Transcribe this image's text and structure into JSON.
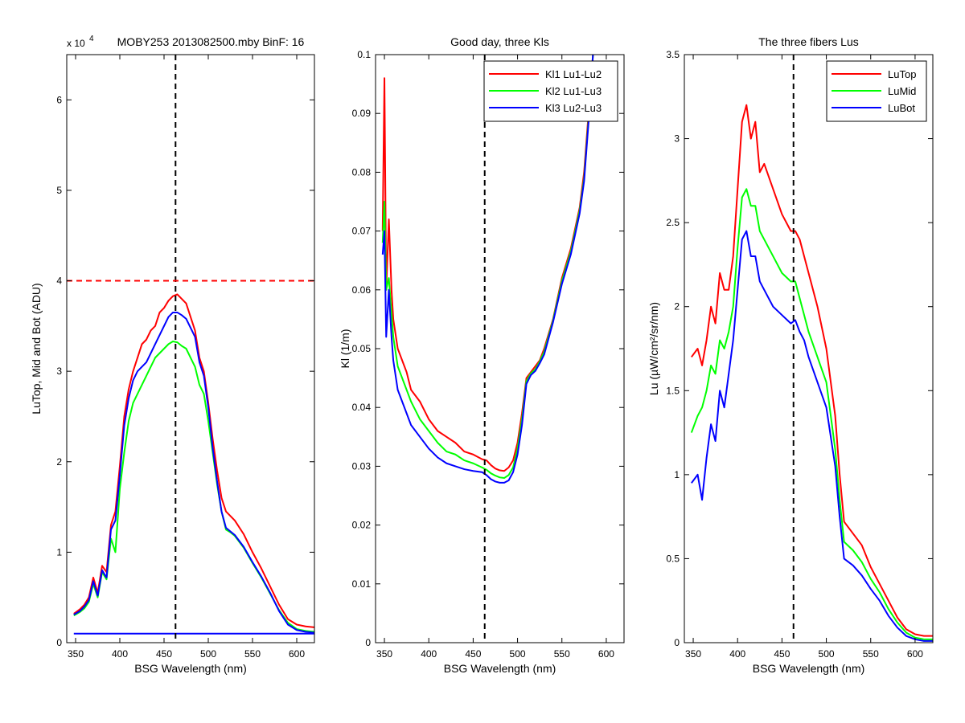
{
  "figure": {
    "background": "#ffffff"
  },
  "chart_data": [
    {
      "type": "line",
      "title": "MOBY253  2013082500.mby BinF: 16",
      "xlabel": "BSG Wavelength (nm)",
      "ylabel": "LuTop, Mid and Bot (ADU)",
      "exponent_label": "x 10",
      "exponent_power": "4",
      "xlim": [
        340,
        620
      ],
      "ylim": [
        0,
        65000
      ],
      "xticks": [
        350,
        400,
        450,
        500,
        550,
        600
      ],
      "xtick_labels": [
        "350",
        "400",
        "450",
        "500",
        "550",
        "600"
      ],
      "yticks": [
        0,
        10000,
        20000,
        30000,
        40000,
        50000,
        60000
      ],
      "ytick_labels": [
        "0",
        "1",
        "2",
        "3",
        "4",
        "5",
        "6"
      ],
      "legend": null,
      "reference_lines": [
        {
          "orientation": "vertical",
          "value": 463,
          "color": "#000000",
          "style": "dashed"
        },
        {
          "orientation": "horizontal",
          "value": 40000,
          "color": "#ff0000",
          "style": "dashed"
        }
      ],
      "series": [
        {
          "color": "#ff0000",
          "x": [
            348,
            355,
            360,
            365,
            370,
            375,
            380,
            385,
            390,
            395,
            400,
            405,
            410,
            415,
            420,
            425,
            430,
            435,
            440,
            445,
            450,
            455,
            460,
            465,
            470,
            475,
            480,
            485,
            490,
            495,
            500,
            505,
            510,
            515,
            520,
            525,
            530,
            540,
            550,
            560,
            570,
            580,
            590,
            600,
            610,
            620
          ],
          "y": [
            3200,
            3700,
            4200,
            5000,
            7200,
            5500,
            8500,
            7800,
            13000,
            14500,
            19500,
            25000,
            28000,
            30000,
            31500,
            33000,
            33500,
            34500,
            35000,
            36500,
            37000,
            37800,
            38300,
            38500,
            38000,
            37500,
            36000,
            34500,
            31500,
            30000,
            26500,
            22500,
            19000,
            16000,
            14500,
            14000,
            13500,
            12000,
            10000,
            8200,
            6200,
            4200,
            2600,
            2000,
            1800,
            1700
          ]
        },
        {
          "color": "#00ff00",
          "x": [
            348,
            355,
            360,
            365,
            370,
            375,
            380,
            385,
            390,
            395,
            400,
            405,
            410,
            415,
            420,
            425,
            430,
            435,
            440,
            445,
            450,
            455,
            460,
            465,
            470,
            475,
            480,
            485,
            490,
            495,
            500,
            505,
            510,
            515,
            520,
            525,
            530,
            540,
            550,
            560,
            570,
            580,
            590,
            600,
            610,
            620
          ],
          "y": [
            3000,
            3400,
            3800,
            4500,
            6500,
            5000,
            7800,
            7000,
            11500,
            10000,
            17000,
            21000,
            24500,
            26500,
            27500,
            28500,
            29500,
            30500,
            31500,
            32000,
            32500,
            33000,
            33300,
            33200,
            32800,
            32500,
            31500,
            30500,
            28500,
            27500,
            24500,
            21000,
            17500,
            14500,
            12500,
            12200,
            11800,
            10500,
            8800,
            7200,
            5400,
            3600,
            2200,
            1500,
            1300,
            1200
          ]
        },
        {
          "color": "#0000ff",
          "x": [
            348,
            355,
            360,
            365,
            370,
            375,
            380,
            385,
            390,
            395,
            400,
            405,
            410,
            415,
            420,
            425,
            430,
            435,
            440,
            445,
            450,
            455,
            460,
            465,
            470,
            475,
            480,
            485,
            490,
            495,
            500,
            505,
            510,
            515,
            520,
            525,
            530,
            540,
            550,
            560,
            570,
            580,
            590,
            600,
            610,
            620
          ],
          "y": [
            3100,
            3500,
            4000,
            4700,
            6800,
            5200,
            8000,
            7200,
            12500,
            13500,
            18500,
            24000,
            27000,
            29000,
            30000,
            30500,
            31000,
            32000,
            33000,
            34000,
            35000,
            36000,
            36500,
            36500,
            36200,
            35800,
            34800,
            33800,
            31000,
            29500,
            26000,
            21500,
            17800,
            14500,
            12700,
            12300,
            11900,
            10600,
            8900,
            7300,
            5500,
            3500,
            2000,
            1400,
            1200,
            1100
          ]
        },
        {
          "color": "#0000ff",
          "x": [
            348,
            620
          ],
          "y": [
            1000,
            1000
          ]
        }
      ]
    },
    {
      "type": "line",
      "title": "Good day, three Kls",
      "xlabel": "BSG Wavelength (nm)",
      "ylabel": "Kl (1/m)",
      "xlim": [
        340,
        620
      ],
      "ylim": [
        0,
        0.1
      ],
      "xticks": [
        350,
        400,
        450,
        500,
        550,
        600
      ],
      "xtick_labels": [
        "350",
        "400",
        "450",
        "500",
        "550",
        "600"
      ],
      "yticks": [
        0,
        0.01,
        0.02,
        0.03,
        0.04,
        0.05,
        0.06,
        0.07,
        0.08,
        0.09,
        0.1
      ],
      "ytick_labels": [
        "0",
        "0.01",
        "0.02",
        "0.03",
        "0.04",
        "0.05",
        "0.06",
        "0.07",
        "0.08",
        "0.09",
        "0.1"
      ],
      "legend": "top-right",
      "reference_lines": [
        {
          "orientation": "vertical",
          "value": 463,
          "color": "#000000",
          "style": "dashed"
        }
      ],
      "series": [
        {
          "name": "Kl1 Lu1-Lu2",
          "color": "#ff0000",
          "x": [
            348,
            350,
            352,
            355,
            358,
            360,
            365,
            370,
            375,
            380,
            390,
            400,
            410,
            420,
            430,
            440,
            450,
            460,
            465,
            470,
            475,
            480,
            485,
            490,
            495,
            500,
            505,
            510,
            515,
            520,
            525,
            530,
            540,
            550,
            560,
            570,
            575,
            580,
            585
          ],
          "y": [
            0.07,
            0.096,
            0.06,
            0.072,
            0.06,
            0.055,
            0.05,
            0.048,
            0.046,
            0.043,
            0.041,
            0.038,
            0.036,
            0.035,
            0.034,
            0.0325,
            0.032,
            0.0312,
            0.031,
            0.0302,
            0.0296,
            0.0293,
            0.0292,
            0.0298,
            0.031,
            0.034,
            0.039,
            0.045,
            0.046,
            0.047,
            0.048,
            0.05,
            0.055,
            0.062,
            0.067,
            0.074,
            0.08,
            0.09,
            0.1
          ]
        },
        {
          "name": "Kl2 Lu1-Lu3",
          "color": "#00ff00",
          "x": [
            348,
            350,
            352,
            355,
            358,
            360,
            365,
            370,
            375,
            380,
            390,
            400,
            410,
            420,
            430,
            440,
            450,
            460,
            465,
            470,
            475,
            480,
            485,
            490,
            495,
            500,
            505,
            510,
            515,
            520,
            525,
            530,
            540,
            550,
            560,
            570,
            575,
            580,
            585
          ],
          "y": [
            0.068,
            0.075,
            0.06,
            0.062,
            0.056,
            0.052,
            0.047,
            0.045,
            0.043,
            0.041,
            0.038,
            0.036,
            0.034,
            0.0325,
            0.032,
            0.031,
            0.0305,
            0.0298,
            0.0294,
            0.0288,
            0.0284,
            0.0281,
            0.028,
            0.0285,
            0.0298,
            0.033,
            0.038,
            0.0445,
            0.0458,
            0.0465,
            0.0478,
            0.0495,
            0.0548,
            0.0615,
            0.0665,
            0.0735,
            0.079,
            0.089,
            0.1
          ]
        },
        {
          "name": "Kl3 Lu2-Lu3",
          "color": "#0000ff",
          "x": [
            348,
            350,
            352,
            355,
            358,
            360,
            365,
            370,
            375,
            380,
            390,
            400,
            410,
            420,
            430,
            440,
            450,
            460,
            465,
            470,
            475,
            480,
            485,
            490,
            495,
            500,
            505,
            510,
            515,
            520,
            525,
            530,
            540,
            550,
            560,
            570,
            575,
            580,
            585
          ],
          "y": [
            0.066,
            0.07,
            0.052,
            0.06,
            0.052,
            0.048,
            0.043,
            0.041,
            0.039,
            0.037,
            0.035,
            0.033,
            0.0315,
            0.0305,
            0.03,
            0.0295,
            0.0292,
            0.029,
            0.0285,
            0.0278,
            0.0274,
            0.0272,
            0.0272,
            0.0276,
            0.029,
            0.032,
            0.037,
            0.044,
            0.0455,
            0.0462,
            0.0475,
            0.049,
            0.0545,
            0.061,
            0.066,
            0.073,
            0.0785,
            0.0885,
            0.1
          ]
        }
      ]
    },
    {
      "type": "line",
      "title": "The three fibers Lus",
      "xlabel": "BSG Wavelength (nm)",
      "ylabel": "Lu (µW/cm²/sr/nm)",
      "xlim": [
        340,
        620
      ],
      "ylim": [
        0,
        3.5
      ],
      "xticks": [
        350,
        400,
        450,
        500,
        550,
        600
      ],
      "xtick_labels": [
        "350",
        "400",
        "450",
        "500",
        "550",
        "600"
      ],
      "yticks": [
        0,
        0.5,
        1,
        1.5,
        2,
        2.5,
        3,
        3.5
      ],
      "ytick_labels": [
        "0",
        "0.5",
        "1",
        "1.5",
        "2",
        "2.5",
        "3",
        "3.5"
      ],
      "legend": "top-right",
      "reference_lines": [
        {
          "orientation": "vertical",
          "value": 463,
          "color": "#000000",
          "style": "dashed"
        }
      ],
      "series": [
        {
          "name": "LuTop",
          "color": "#ff0000",
          "x": [
            348,
            355,
            360,
            365,
            370,
            375,
            380,
            385,
            390,
            395,
            400,
            405,
            410,
            415,
            420,
            425,
            430,
            440,
            450,
            460,
            465,
            470,
            475,
            480,
            490,
            500,
            510,
            515,
            520,
            530,
            540,
            550,
            560,
            570,
            580,
            590,
            600,
            610,
            620
          ],
          "y": [
            1.7,
            1.75,
            1.65,
            1.8,
            2.0,
            1.9,
            2.2,
            2.1,
            2.1,
            2.3,
            2.7,
            3.1,
            3.2,
            3.0,
            3.1,
            2.8,
            2.85,
            2.7,
            2.55,
            2.45,
            2.45,
            2.4,
            2.3,
            2.2,
            2.0,
            1.75,
            1.35,
            1.0,
            0.72,
            0.65,
            0.58,
            0.45,
            0.35,
            0.25,
            0.15,
            0.08,
            0.05,
            0.04,
            0.04
          ]
        },
        {
          "name": "LuMid",
          "color": "#00ff00",
          "x": [
            348,
            355,
            360,
            365,
            370,
            375,
            380,
            385,
            390,
            395,
            400,
            405,
            410,
            415,
            420,
            425,
            430,
            440,
            450,
            460,
            465,
            470,
            475,
            480,
            490,
            500,
            510,
            515,
            520,
            530,
            540,
            550,
            560,
            570,
            580,
            590,
            600,
            610,
            620
          ],
          "y": [
            1.25,
            1.35,
            1.4,
            1.5,
            1.65,
            1.6,
            1.8,
            1.75,
            1.85,
            2.0,
            2.35,
            2.65,
            2.7,
            2.6,
            2.6,
            2.45,
            2.4,
            2.3,
            2.2,
            2.15,
            2.15,
            2.05,
            1.95,
            1.85,
            1.7,
            1.55,
            1.15,
            0.85,
            0.6,
            0.55,
            0.48,
            0.38,
            0.3,
            0.2,
            0.12,
            0.06,
            0.03,
            0.02,
            0.02
          ]
        },
        {
          "name": "LuBot",
          "color": "#0000ff",
          "x": [
            348,
            355,
            360,
            365,
            370,
            375,
            380,
            385,
            390,
            395,
            400,
            405,
            410,
            415,
            420,
            425,
            430,
            440,
            450,
            460,
            465,
            470,
            475,
            480,
            490,
            500,
            510,
            515,
            520,
            530,
            540,
            550,
            560,
            570,
            580,
            590,
            600,
            610,
            620
          ],
          "y": [
            0.95,
            1.0,
            0.85,
            1.1,
            1.3,
            1.2,
            1.5,
            1.4,
            1.6,
            1.8,
            2.1,
            2.4,
            2.45,
            2.3,
            2.3,
            2.15,
            2.1,
            2.0,
            1.95,
            1.9,
            1.92,
            1.85,
            1.8,
            1.7,
            1.55,
            1.4,
            1.05,
            0.75,
            0.5,
            0.46,
            0.4,
            0.32,
            0.25,
            0.16,
            0.09,
            0.04,
            0.02,
            0.01,
            0.01
          ]
        }
      ]
    }
  ]
}
